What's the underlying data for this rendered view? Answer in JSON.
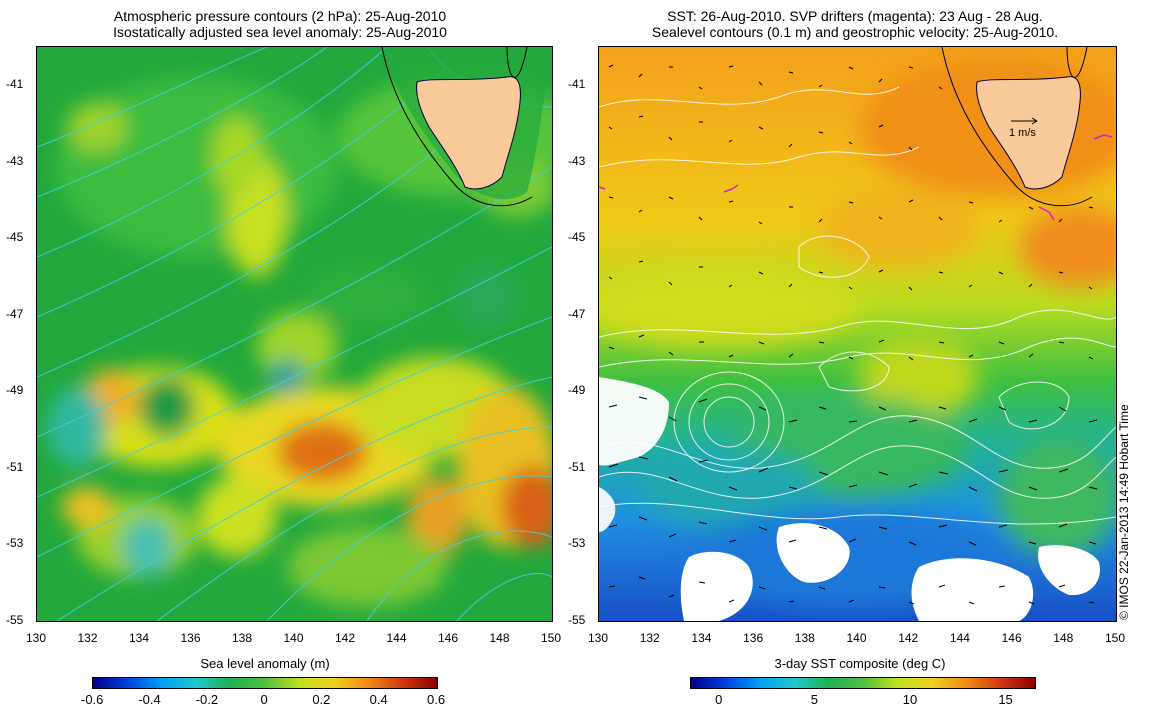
{
  "left_panel": {
    "title_line1": "Atmospheric pressure contours (2 hPa): 25-Aug-2010",
    "title_line2": "Isostatically adjusted sea level anomaly: 25-Aug-2010",
    "colorbar_title": "Sea level anomaly (m)",
    "colorbar_ticks": [
      "-0.6",
      "-0.4",
      "-0.2",
      "0",
      "0.2",
      "0.4",
      "0.6"
    ]
  },
  "right_panel": {
    "title_line1": "SST: 26-Aug-2010. SVP drifters (magenta): 23 Aug - 28 Aug.",
    "title_line2": "Sealevel contours (0.1 m) and geostrophic velocity: 25-Aug-2010.",
    "colorbar_title": "3-day SST composite (deg C)",
    "colorbar_ticks": [
      "0",
      "5",
      "10",
      "15"
    ],
    "velocity_scale_label": "1 m/s"
  },
  "axes": {
    "x_ticks": [
      "130",
      "132",
      "134",
      "136",
      "138",
      "140",
      "142",
      "144",
      "146",
      "148",
      "150"
    ],
    "y_ticks": [
      "-41",
      "-43",
      "-45",
      "-47",
      "-49",
      "-51",
      "-53",
      "-55"
    ]
  },
  "credit": "© IMOS 22-Jan-2013 14:49 Hobart Time",
  "colors": {
    "land": "#f9c99a",
    "pressure_contour": "#40d0e0",
    "sealevel_contour": "#ffffff",
    "drifter": "#d020d0",
    "ocean_green": "#20b040"
  }
}
